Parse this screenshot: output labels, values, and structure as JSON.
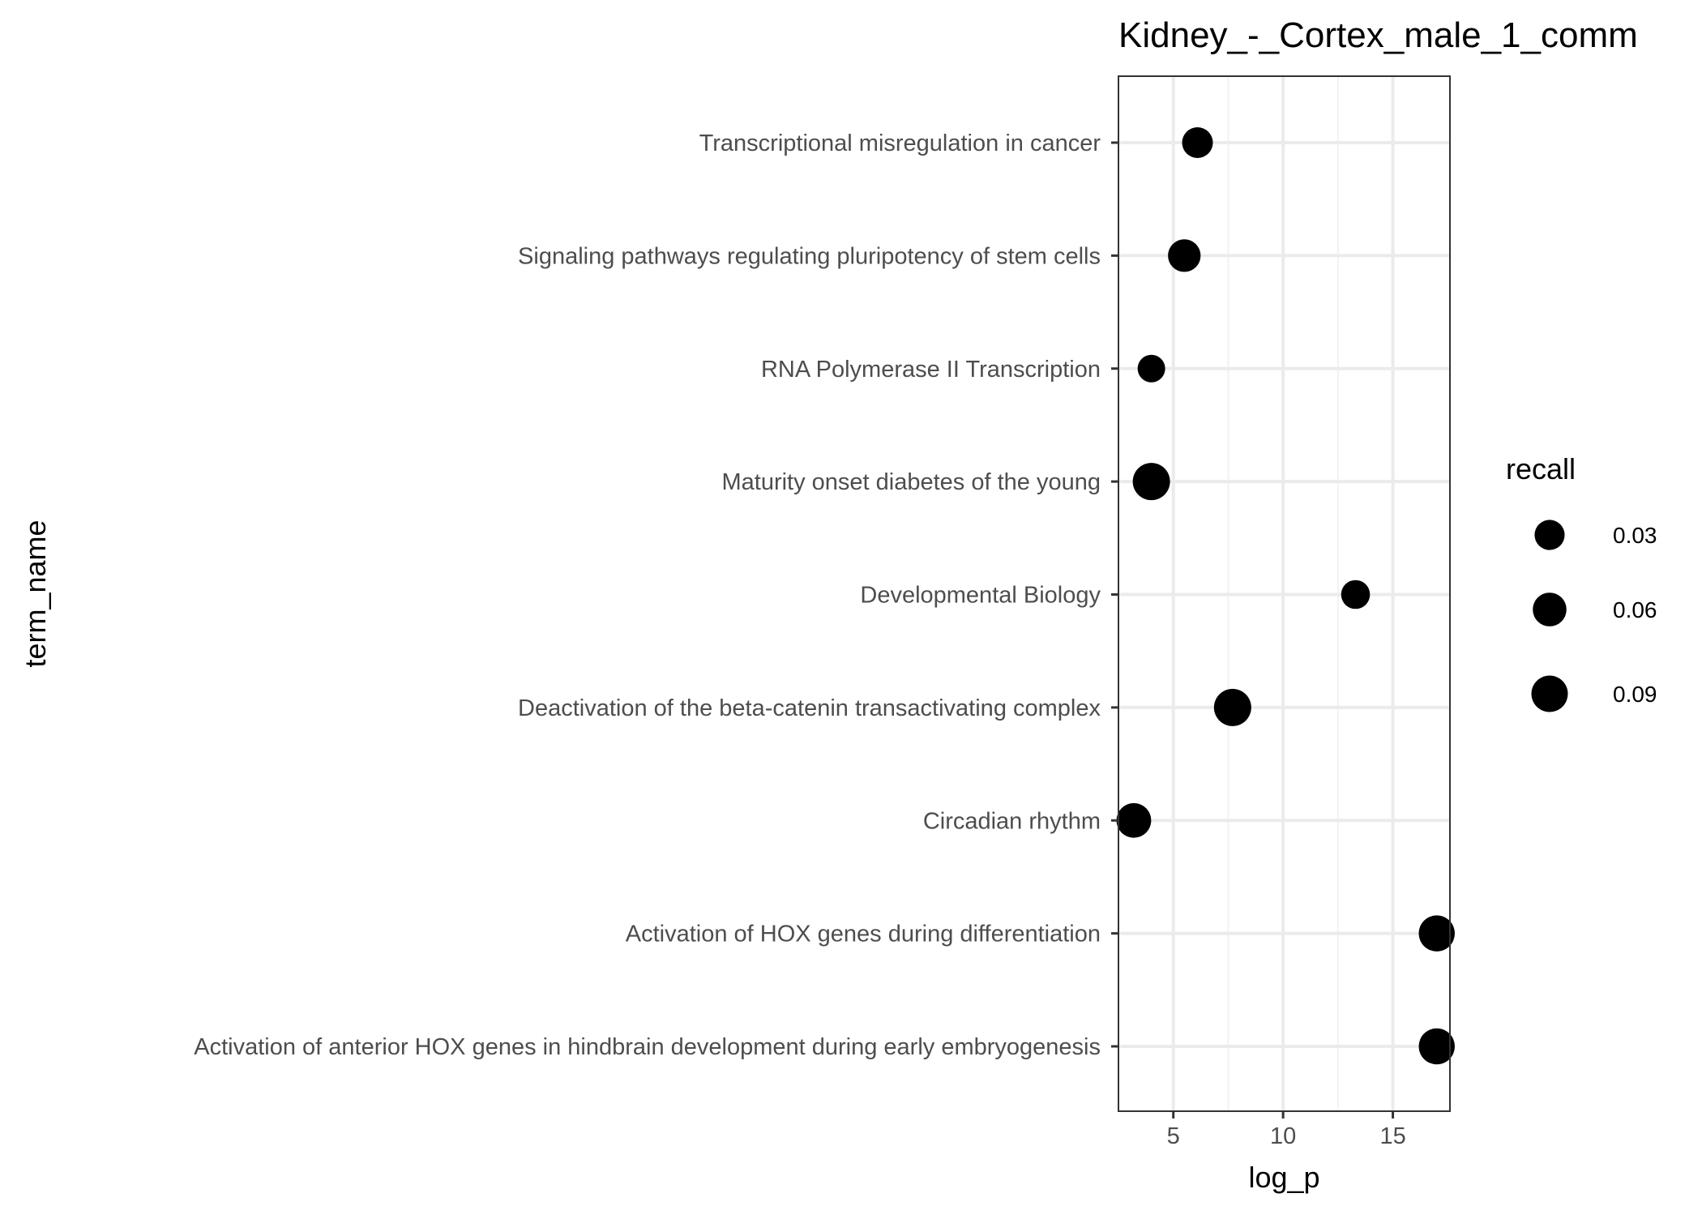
{
  "chart_data": {
    "type": "scatter",
    "title": "Kidney_-_Cortex_male_1_comm",
    "xlabel": "log_p",
    "ylabel": "term_name",
    "xlim": [
      2.5,
      17.6
    ],
    "x_ticks": [
      5,
      10,
      15
    ],
    "grid": true,
    "legend_position": "right",
    "legend": {
      "title": "recall",
      "entries": [
        {
          "label": "0.03",
          "value": 0.03
        },
        {
          "label": "0.06",
          "value": 0.06
        },
        {
          "label": "0.09",
          "value": 0.09
        }
      ]
    },
    "points": [
      {
        "term": "Transcriptional misregulation in cancer",
        "log_p": 6.1,
        "recall": 0.035
      },
      {
        "term": "Signaling pathways regulating pluripotency of stem cells",
        "log_p": 5.5,
        "recall": 0.05
      },
      {
        "term": "RNA Polymerase II Transcription",
        "log_p": 4.0,
        "recall": 0.015
      },
      {
        "term": "Maturity onset diabetes of the young",
        "log_p": 4.0,
        "recall": 0.1
      },
      {
        "term": "Developmental Biology",
        "log_p": 13.3,
        "recall": 0.022
      },
      {
        "term": "Deactivation of the beta-catenin transactivating complex",
        "log_p": 7.7,
        "recall": 0.1
      },
      {
        "term": "Circadian rhythm",
        "log_p": 3.2,
        "recall": 0.07
      },
      {
        "term": "Activation of HOX genes during differentiation",
        "log_p": 17.0,
        "recall": 0.085
      },
      {
        "term": "Activation of anterior HOX genes in hindbrain development during early embryogenesis",
        "log_p": 17.0,
        "recall": 0.085
      }
    ],
    "color": "#000000"
  }
}
